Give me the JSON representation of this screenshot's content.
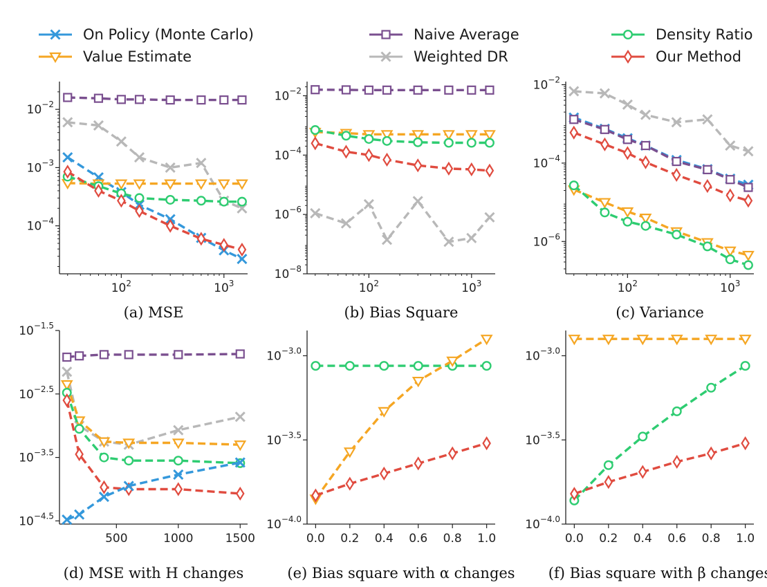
{
  "legend": {
    "placement": "top",
    "entries": [
      {
        "key": "mc",
        "label": "On Policy (Monte Carlo)",
        "color": "#3498db",
        "marker": "x-icon"
      },
      {
        "key": "ve",
        "label": "Value Estimate",
        "color": "#f5a623",
        "marker": "triangle-down-icon"
      },
      {
        "key": "na",
        "label": "Naive Average",
        "color": "#7a4f8f",
        "marker": "square-icon"
      },
      {
        "key": "wdr",
        "label": "Weighted DR",
        "color": "#b8b8b8",
        "marker": "x-icon"
      },
      {
        "key": "dr",
        "label": "Density Ratio",
        "color": "#2ecc71",
        "marker": "circle-icon"
      },
      {
        "key": "om",
        "label": "Our Method",
        "color": "#e04b3f",
        "marker": "diamond-icon"
      }
    ]
  },
  "chart_data": [
    {
      "type": "line",
      "caption": "(a) MSE",
      "xscale": "log",
      "yscale": "log",
      "xlim": [
        25,
        1700
      ],
      "ylim": [
        1.5e-05,
        0.03
      ],
      "xticks": [
        {
          "v": 100,
          "b": "10",
          "e": "2"
        },
        {
          "v": 1000,
          "b": "10",
          "e": "3"
        }
      ],
      "yticks": [
        {
          "v": 0.0001,
          "b": "10",
          "e": "−4"
        },
        {
          "v": 0.001,
          "b": "10",
          "e": "−3"
        },
        {
          "v": 0.01,
          "b": "10",
          "e": "−2"
        }
      ],
      "x": [
        30,
        60,
        100,
        150,
        300,
        600,
        1000,
        1500
      ],
      "series": [
        {
          "key": "na",
          "values": [
            0.016,
            0.0155,
            0.0148,
            0.0148,
            0.0145,
            0.0145,
            0.0145,
            0.0145
          ]
        },
        {
          "key": "wdr",
          "values": [
            0.006,
            0.0053,
            0.0028,
            0.0015,
            0.001,
            0.0012,
            0.00027,
            0.0002
          ]
        },
        {
          "key": "mc",
          "values": [
            0.0015,
            0.00068,
            0.00038,
            0.00023,
            0.00013,
            6.2e-05,
            3.8e-05,
            2.7e-05
          ]
        },
        {
          "key": "ve",
          "values": [
            0.00054,
            0.00053,
            0.00053,
            0.00053,
            0.00053,
            0.00053,
            0.00053,
            0.00053
          ]
        },
        {
          "key": "dr",
          "values": [
            0.0007,
            0.00048,
            0.00036,
            0.0003,
            0.00028,
            0.00027,
            0.00026,
            0.00026
          ]
        },
        {
          "key": "om",
          "values": [
            0.00085,
            0.0004,
            0.00027,
            0.00018,
            0.0001,
            6e-05,
            4.7e-05,
            3.9e-05
          ]
        }
      ]
    },
    {
      "type": "line",
      "caption": "(b) Bias Square",
      "xscale": "log",
      "yscale": "log",
      "xlim": [
        25,
        1700
      ],
      "ylim": [
        1e-08,
        0.03
      ],
      "xticks": [
        {
          "v": 100,
          "b": "10",
          "e": "2"
        },
        {
          "v": 1000,
          "b": "10",
          "e": "3"
        }
      ],
      "yticks": [
        {
          "v": 1e-08,
          "b": "10",
          "e": "−8"
        },
        {
          "v": 1e-06,
          "b": "10",
          "e": "−6"
        },
        {
          "v": 0.0001,
          "b": "10",
          "e": "−4"
        },
        {
          "v": 0.01,
          "b": "10",
          "e": "−2"
        }
      ],
      "x": [
        30,
        60,
        100,
        150,
        300,
        600,
        1000,
        1500
      ],
      "series": [
        {
          "key": "na",
          "values": [
            0.016,
            0.0158,
            0.0155,
            0.0155,
            0.0155,
            0.0155,
            0.0155,
            0.0155
          ]
        },
        {
          "key": "ve",
          "values": [
            0.0006,
            0.00055,
            0.0005,
            0.0005,
            0.0005,
            0.0005,
            0.0005,
            0.0005
          ]
        },
        {
          "key": "dr",
          "values": [
            0.0007,
            0.00045,
            0.00035,
            0.0003,
            0.00027,
            0.00026,
            0.00026,
            0.00026
          ]
        },
        {
          "key": "om",
          "values": [
            0.00025,
            0.00013,
            0.0001,
            7e-05,
            4.5e-05,
            3.5e-05,
            3.3e-05,
            3e-05
          ]
        },
        {
          "key": "wdr",
          "values": [
            1.1e-06,
            5e-07,
            2.2e-06,
            1.4e-07,
            2.8e-06,
            1.2e-07,
            1.6e-07,
            8e-07
          ]
        }
      ]
    },
    {
      "type": "line",
      "caption": "(c) Variance",
      "xscale": "log",
      "yscale": "log",
      "xlim": [
        25,
        1700
      ],
      "ylim": [
        1.5e-07,
        0.012
      ],
      "xticks": [
        {
          "v": 100,
          "b": "10",
          "e": "2"
        },
        {
          "v": 1000,
          "b": "10",
          "e": "3"
        }
      ],
      "yticks": [
        {
          "v": 1e-06,
          "b": "10",
          "e": "−6"
        },
        {
          "v": 0.0001,
          "b": "10",
          "e": "−4"
        },
        {
          "v": 0.01,
          "b": "10",
          "e": "−2"
        }
      ],
      "x": [
        30,
        60,
        100,
        150,
        300,
        600,
        1000,
        1500
      ],
      "series": [
        {
          "key": "wdr",
          "values": [
            0.0068,
            0.006,
            0.0031,
            0.0017,
            0.0011,
            0.0013,
            0.00028,
            0.0002
          ]
        },
        {
          "key": "mc",
          "values": [
            0.00145,
            0.00075,
            0.00043,
            0.00028,
            0.00012,
            7e-05,
            4e-05,
            2.8e-05
          ]
        },
        {
          "key": "na",
          "values": [
            0.0013,
            0.00072,
            0.0004,
            0.00028,
            0.00011,
            6.8e-05,
            3.8e-05,
            2.4e-05
          ]
        },
        {
          "key": "om",
          "values": [
            0.0006,
            0.0003,
            0.00018,
            0.000105,
            5e-05,
            2.6e-05,
            1.5e-05,
            1.1e-05
          ]
        },
        {
          "key": "ve",
          "values": [
            2.1e-05,
            1e-05,
            5.8e-06,
            4e-06,
            1.8e-06,
            9.5e-07,
            5.8e-07,
            4.5e-07
          ]
        },
        {
          "key": "dr",
          "values": [
            2.7e-05,
            5.5e-06,
            3.2e-06,
            2.5e-06,
            1.5e-06,
            7.5e-07,
            3.5e-07,
            2.5e-07
          ]
        }
      ]
    },
    {
      "type": "line",
      "caption": "(d) MSE with H changes",
      "xscale": "linear",
      "yscale": "log",
      "xlim": [
        40,
        1560
      ],
      "ylim": [
        -4.55,
        -1.5
      ],
      "xticks": [
        {
          "v": 500,
          "t": "500"
        },
        {
          "v": 1000,
          "t": "1000"
        },
        {
          "v": 1500,
          "t": "1500"
        }
      ],
      "yticks": [
        {
          "v": -4.5,
          "b": "10",
          "e": "−4.5"
        },
        {
          "v": -3.5,
          "b": "10",
          "e": "−3.5"
        },
        {
          "v": -2.5,
          "b": "10",
          "e": "−2.5"
        },
        {
          "v": -1.5,
          "b": "10",
          "e": "−1.5"
        }
      ],
      "x": [
        100,
        200,
        400,
        600,
        1000,
        1500
      ],
      "series": [
        {
          "key": "na",
          "values": [
            -1.92,
            -1.9,
            -1.88,
            -1.88,
            -1.88,
            -1.87
          ]
        },
        {
          "key": "wdr",
          "values": [
            -2.15,
            -3.0,
            -3.25,
            -3.3,
            -3.07,
            -2.86
          ]
        },
        {
          "key": "ve",
          "values": [
            -2.35,
            -2.92,
            -3.25,
            -3.27,
            -3.27,
            -3.3
          ]
        },
        {
          "key": "dr",
          "values": [
            -2.48,
            -3.05,
            -3.5,
            -3.55,
            -3.55,
            -3.59
          ]
        },
        {
          "key": "om",
          "values": [
            -2.6,
            -3.45,
            -3.97,
            -4.0,
            -4.0,
            -4.07
          ]
        },
        {
          "key": "mc",
          "values": [
            -4.48,
            -4.4,
            -4.12,
            -3.95,
            -3.77,
            -3.58
          ]
        }
      ]
    },
    {
      "type": "line",
      "caption": "(e) Bias square with α changes",
      "xscale": "linear",
      "yscale": "log",
      "xlim": [
        -0.05,
        1.05
      ],
      "ylim": [
        -4.0,
        -2.85
      ],
      "xticks": [
        {
          "v": 0,
          "t": "0.0"
        },
        {
          "v": 0.2,
          "t": "0.2"
        },
        {
          "v": 0.4,
          "t": "0.4"
        },
        {
          "v": 0.6,
          "t": "0.6"
        },
        {
          "v": 0.8,
          "t": "0.8"
        },
        {
          "v": 1.0,
          "t": "1.0"
        }
      ],
      "yticks": [
        {
          "v": -4.0,
          "b": "10",
          "e": "−4.0"
        },
        {
          "v": -3.5,
          "b": "10",
          "e": "−3.5"
        },
        {
          "v": -3.0,
          "b": "10",
          "e": "−3.0"
        }
      ],
      "x": [
        0,
        0.2,
        0.4,
        0.6,
        0.8,
        1.0
      ],
      "series": [
        {
          "key": "dr",
          "values": [
            -3.06,
            -3.06,
            -3.06,
            -3.06,
            -3.06,
            -3.06
          ]
        },
        {
          "key": "ve",
          "values": [
            -3.85,
            -3.57,
            -3.33,
            -3.15,
            -3.03,
            -2.9
          ]
        },
        {
          "key": "om",
          "values": [
            -3.83,
            -3.76,
            -3.7,
            -3.64,
            -3.58,
            -3.52
          ]
        }
      ]
    },
    {
      "type": "line",
      "caption": "(f) Bias square with β changes",
      "xscale": "linear",
      "yscale": "log",
      "xlim": [
        -0.05,
        1.05
      ],
      "ylim": [
        -4.0,
        -2.85
      ],
      "xticks": [
        {
          "v": 0,
          "t": "0.0"
        },
        {
          "v": 0.2,
          "t": "0.2"
        },
        {
          "v": 0.4,
          "t": "0.4"
        },
        {
          "v": 0.6,
          "t": "0.6"
        },
        {
          "v": 0.8,
          "t": "0.8"
        },
        {
          "v": 1.0,
          "t": "1.0"
        }
      ],
      "yticks": [
        {
          "v": -4.0,
          "b": "10",
          "e": "−4.0"
        },
        {
          "v": -3.5,
          "b": "10",
          "e": "−3.5"
        },
        {
          "v": -3.0,
          "b": "10",
          "e": "−3.0"
        }
      ],
      "x": [
        0,
        0.2,
        0.4,
        0.6,
        0.8,
        1.0
      ],
      "series": [
        {
          "key": "ve",
          "values": [
            -2.9,
            -2.9,
            -2.9,
            -2.9,
            -2.9,
            -2.9
          ]
        },
        {
          "key": "dr",
          "values": [
            -3.86,
            -3.65,
            -3.48,
            -3.33,
            -3.19,
            -3.06
          ]
        },
        {
          "key": "om",
          "values": [
            -3.82,
            -3.75,
            -3.69,
            -3.63,
            -3.58,
            -3.52
          ]
        }
      ]
    }
  ]
}
